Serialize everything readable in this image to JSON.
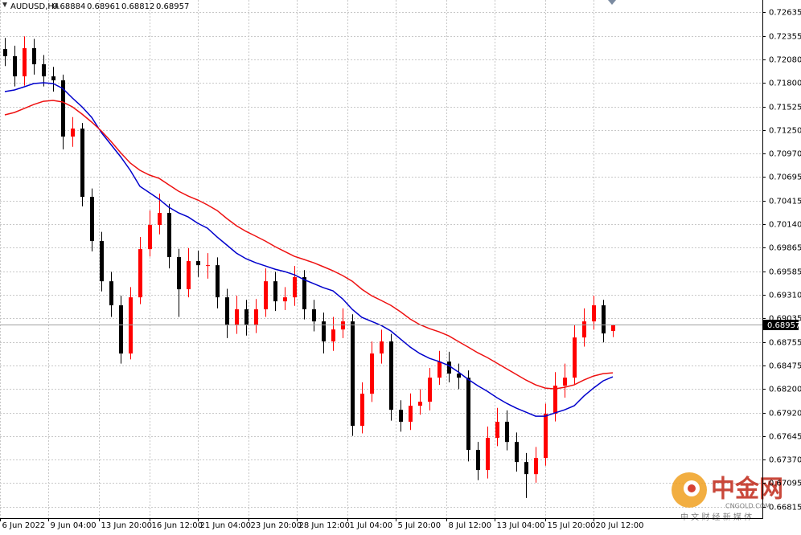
{
  "chart_data": {
    "type": "candlestick",
    "title": "AUDUSD,H4",
    "up_color": "#ff0000",
    "down_color": "#000000",
    "grid": true,
    "open": [
      0.722,
      0.72116,
      0.71879,
      0.7221,
      0.72021,
      0.71879,
      0.71832,
      0.71171,
      0.71265,
      0.70462,
      0.69942,
      0.69469,
      0.69186,
      0.68619,
      0.6928,
      0.69847,
      0.70131,
      0.70273,
      0.69753,
      0.69375,
      0.69706,
      0.69658,
      0.69658,
      0.6928,
      0.6895,
      0.69139,
      0.6895,
      0.69139,
      0.69469,
      0.69233,
      0.6928,
      0.69517,
      0.69139,
      0.68997,
      0.68761,
      0.68902,
      0.68997,
      0.67768,
      0.68146,
      0.68619,
      0.68761,
      0.67957,
      0.67816,
      0.68005,
      0.68052,
      0.68335,
      0.68524,
      0.68383,
      0.68335,
      0.67485,
      0.67249,
      0.67627,
      0.67816,
      0.67579,
      0.67343,
      0.67201,
      0.6739,
      0.6791,
      0.68241,
      0.68335,
      0.68808,
      0.68997,
      0.69186,
      0.68884
    ],
    "high": [
      0.7233,
      0.7224,
      0.7235,
      0.7232,
      0.7213,
      0.7199,
      0.719,
      0.714,
      0.7133,
      0.7056,
      0.7005,
      0.6958,
      0.693,
      0.694,
      0.6999,
      0.703,
      0.705,
      0.7038,
      0.6985,
      0.6986,
      0.6983,
      0.698,
      0.6975,
      0.6938,
      0.693,
      0.6925,
      0.6926,
      0.6962,
      0.6958,
      0.694,
      0.6965,
      0.696,
      0.6925,
      0.691,
      0.6905,
      0.6915,
      0.6908,
      0.6828,
      0.6876,
      0.689,
      0.6885,
      0.6807,
      0.6815,
      0.682,
      0.6845,
      0.6865,
      0.6864,
      0.685,
      0.6842,
      0.6758,
      0.6776,
      0.6798,
      0.6795,
      0.6769,
      0.6745,
      0.6752,
      0.6803,
      0.684,
      0.685,
      0.6895,
      0.6915,
      0.693,
      0.6925,
      0.68961
    ],
    "low": [
      0.72,
      0.7176,
      0.7177,
      0.719,
      0.7176,
      0.717,
      0.7102,
      0.7105,
      0.7035,
      0.6982,
      0.6935,
      0.6905,
      0.685,
      0.6855,
      0.692,
      0.6976,
      0.7002,
      0.6962,
      0.6905,
      0.6928,
      0.6952,
      0.695,
      0.6915,
      0.688,
      0.6885,
      0.6883,
      0.6886,
      0.6905,
      0.6912,
      0.6913,
      0.6918,
      0.6902,
      0.6888,
      0.6862,
      0.6865,
      0.688,
      0.6765,
      0.6768,
      0.6805,
      0.685,
      0.6783,
      0.677,
      0.6772,
      0.679,
      0.6795,
      0.6825,
      0.6828,
      0.682,
      0.6735,
      0.6713,
      0.6715,
      0.6753,
      0.6748,
      0.6723,
      0.6692,
      0.671,
      0.673,
      0.6782,
      0.681,
      0.6825,
      0.687,
      0.689,
      0.6875,
      0.68812
    ],
    "close": [
      0.72116,
      0.71879,
      0.7221,
      0.72021,
      0.71879,
      0.71832,
      0.71171,
      0.71265,
      0.70462,
      0.69942,
      0.69469,
      0.69186,
      0.68619,
      0.6928,
      0.69847,
      0.70131,
      0.70273,
      0.69753,
      0.69375,
      0.69706,
      0.69658,
      0.69658,
      0.6928,
      0.6895,
      0.69139,
      0.6895,
      0.69139,
      0.69469,
      0.69233,
      0.6928,
      0.69517,
      0.69139,
      0.68997,
      0.68761,
      0.68902,
      0.68997,
      0.67768,
      0.68146,
      0.68619,
      0.68761,
      0.67957,
      0.67816,
      0.68005,
      0.68052,
      0.68335,
      0.68524,
      0.68383,
      0.68335,
      0.67485,
      0.67249,
      0.67627,
      0.67816,
      0.67579,
      0.67343,
      0.67201,
      0.6739,
      0.6791,
      0.68241,
      0.68335,
      0.68808,
      0.68997,
      0.69186,
      0.68855,
      0.68957
    ],
    "moving_averages": [
      {
        "color": "#0000cc",
        "values": [
          0.717,
          0.71719,
          0.71756,
          0.71794,
          0.71804,
          0.71794,
          0.71737,
          0.71624,
          0.7152,
          0.71397,
          0.71218,
          0.71076,
          0.70934,
          0.70774,
          0.70585,
          0.70509,
          0.70433,
          0.70339,
          0.70273,
          0.70225,
          0.7015,
          0.70093,
          0.69989,
          0.69895,
          0.698,
          0.69734,
          0.69687,
          0.69649,
          0.69611,
          0.69583,
          0.69545,
          0.69488,
          0.69441,
          0.69394,
          0.69356,
          0.69262,
          0.69139,
          0.69044,
          0.68997,
          0.6895,
          0.68884,
          0.68789,
          0.68695,
          0.68619,
          0.68562,
          0.68524,
          0.68477,
          0.68402,
          0.68317,
          0.68241,
          0.68175,
          0.68099,
          0.68033,
          0.67976,
          0.67929,
          0.67882,
          0.67882,
          0.6792,
          0.67957,
          0.68005,
          0.68118,
          0.68213,
          0.68298,
          0.68345
        ]
      },
      {
        "color": "#ee1111",
        "values": [
          0.71426,
          0.71454,
          0.71501,
          0.71548,
          0.71586,
          0.71596,
          0.71577,
          0.7152,
          0.71435,
          0.71341,
          0.71237,
          0.71114,
          0.70981,
          0.70859,
          0.70774,
          0.70717,
          0.70679,
          0.70603,
          0.70528,
          0.70471,
          0.70424,
          0.70367,
          0.70301,
          0.70207,
          0.70122,
          0.70055,
          0.69999,
          0.69942,
          0.69876,
          0.69819,
          0.69762,
          0.69725,
          0.69687,
          0.6964,
          0.69592,
          0.69536,
          0.69469,
          0.69375,
          0.69299,
          0.69243,
          0.69186,
          0.6911,
          0.69025,
          0.68959,
          0.68912,
          0.68874,
          0.68827,
          0.68761,
          0.68695,
          0.68628,
          0.68572,
          0.68506,
          0.68439,
          0.68373,
          0.68307,
          0.6825,
          0.68213,
          0.68203,
          0.68222,
          0.6825,
          0.68307,
          0.68354,
          0.68383,
          0.68392
        ]
      }
    ],
    "current_price": 0.68957,
    "ylim": [
      0.66683,
      0.72777
    ],
    "yticks": [
      0.72635,
      0.72355,
      {
        "value": 0.7208,
        "label": "0.72080"
      },
      {
        "value": 0.718,
        "label": "0.71800"
      },
      0.71525,
      {
        "value": 0.7125,
        "label": "0.71250"
      },
      {
        "value": 0.7097,
        "label": "0.70970"
      },
      0.70695,
      0.70415,
      {
        "value": 0.7014,
        "label": "0.70140"
      },
      0.69865,
      0.69585,
      {
        "value": 0.6931,
        "label": "0.69310"
      },
      0.69035,
      0.68755,
      0.68475,
      {
        "value": 0.682,
        "label": "0.68200"
      },
      {
        "value": 0.6792,
        "label": "0.67920"
      },
      0.67645,
      {
        "value": 0.6737,
        "label": "0.67370"
      },
      0.67095,
      0.66815
    ],
    "xlim": [
      -0.5,
      78.5
    ],
    "xticks": [
      {
        "value": -0.5,
        "label": "6 Jun 2022"
      },
      {
        "value": 4.5,
        "label": "9 Jun 04:00"
      },
      {
        "value": 9.75,
        "label": "13 Jun 20:00"
      },
      {
        "value": 15,
        "label": "16 Jun 12:00"
      },
      {
        "value": 20,
        "label": "21 Jun 04:00"
      },
      {
        "value": 25.25,
        "label": "23 Jun 20:00"
      },
      {
        "value": 30.25,
        "label": "28 Jun 12:00"
      },
      {
        "value": 35.5,
        "label": "1 Jul 04:00"
      },
      {
        "value": 40.5,
        "label": "5 Jul 20:00"
      },
      {
        "value": 45.75,
        "label": "8 Jul 12:00"
      },
      {
        "value": 50.75,
        "label": "13 Jul 04:00"
      },
      {
        "value": 56,
        "label": "15 Jul 20:00"
      },
      {
        "value": 61,
        "label": "20 Jul 12:00"
      }
    ]
  },
  "watermark": {
    "logo": "中金网",
    "site": "CNGOLD.COM",
    "slogan": "中 文 财 经 新 媒 体"
  }
}
